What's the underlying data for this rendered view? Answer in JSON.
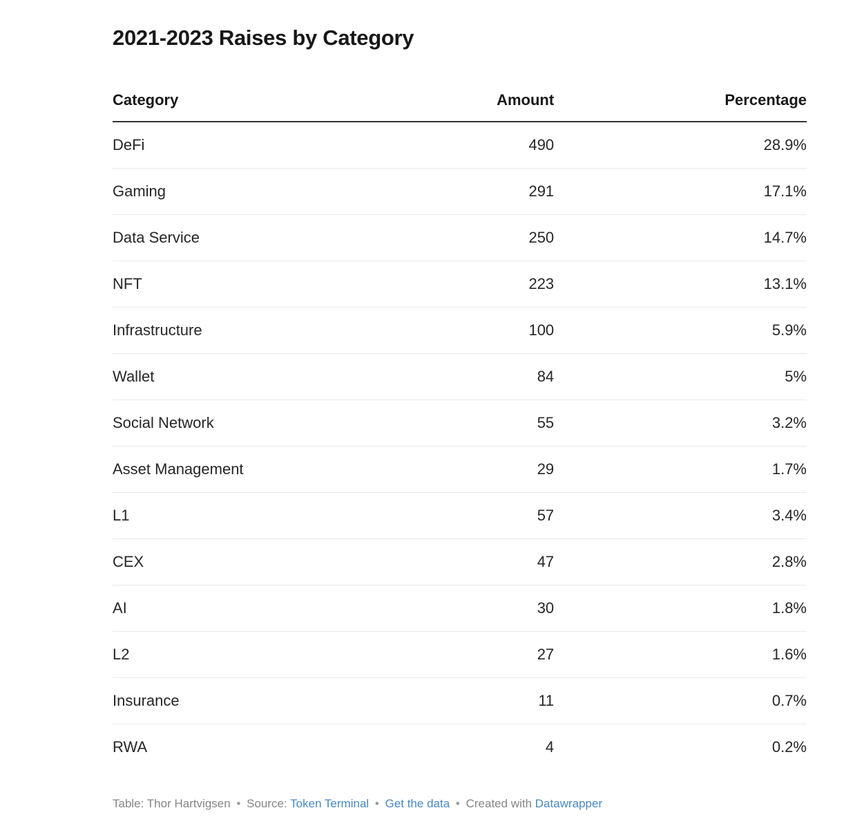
{
  "title": "2021-2023 Raises by Category",
  "chart_data": {
    "type": "table",
    "title": "2021-2023 Raises by Category",
    "columns": [
      "Category",
      "Amount",
      "Percentage"
    ],
    "rows": [
      {
        "category": "DeFi",
        "amount": "490",
        "percentage": "28.9%"
      },
      {
        "category": "Gaming",
        "amount": "291",
        "percentage": "17.1%"
      },
      {
        "category": "Data Service",
        "amount": "250",
        "percentage": "14.7%"
      },
      {
        "category": "NFT",
        "amount": "223",
        "percentage": "13.1%"
      },
      {
        "category": "Infrastructure",
        "amount": "100",
        "percentage": "5.9%"
      },
      {
        "category": "Wallet",
        "amount": "84",
        "percentage": "5%"
      },
      {
        "category": "Social Network",
        "amount": "55",
        "percentage": "3.2%"
      },
      {
        "category": "Asset Management",
        "amount": "29",
        "percentage": "1.7%"
      },
      {
        "category": "L1",
        "amount": "57",
        "percentage": "3.4%"
      },
      {
        "category": "CEX",
        "amount": "47",
        "percentage": "2.8%"
      },
      {
        "category": "AI",
        "amount": "30",
        "percentage": "1.8%"
      },
      {
        "category": "L2",
        "amount": "27",
        "percentage": "1.6%"
      },
      {
        "category": "Insurance",
        "amount": "11",
        "percentage": "0.7%"
      },
      {
        "category": "RWA",
        "amount": "4",
        "percentage": "0.2%"
      }
    ]
  },
  "footer": {
    "byline": "Table: Thor Hartvigsen",
    "bullet": "•",
    "source_label": "Source:",
    "source_link": "Token Terminal",
    "get_data_link": "Get the data",
    "created_label": "Created with",
    "created_link": "Datawrapper"
  },
  "colors": {
    "text": "#262626",
    "heading": "#181818",
    "header_rule": "#333333",
    "row_separator": "#e9e9e9",
    "footer_text": "#858585",
    "link": "#4788c7",
    "background": "#ffffff"
  }
}
